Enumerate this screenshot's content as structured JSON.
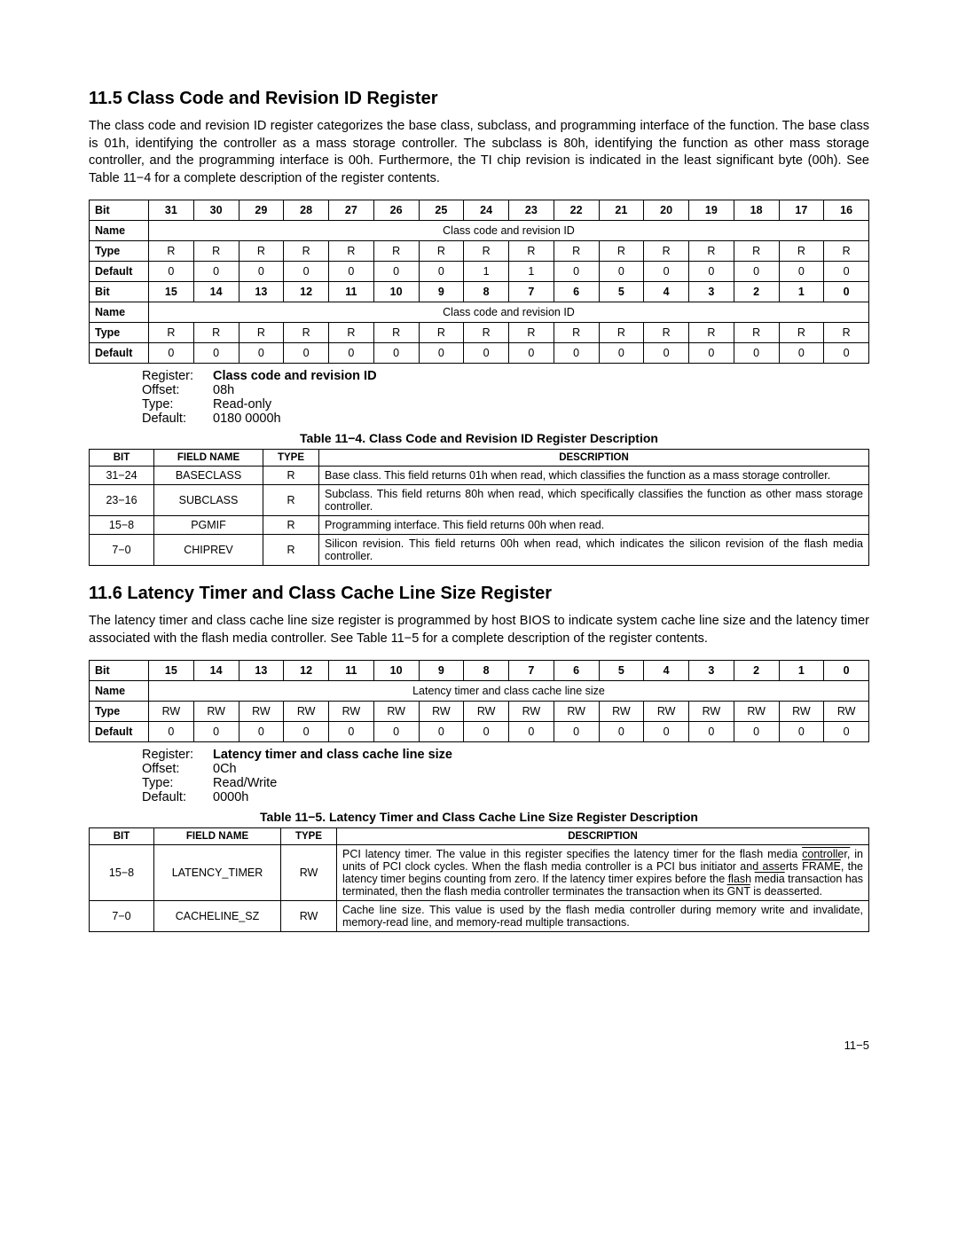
{
  "page_number": "11−5",
  "s1": {
    "heading": "11.5 Class Code and Revision ID Register",
    "para": "The class code and revision ID register categorizes the base class, subclass, and programming interface of the function. The base class is 01h, identifying the controller as a mass storage controller. The subclass is 80h, identifying the function as other mass storage controller, and the programming interface is 00h. Furthermore, the TI chip revision is indicated in the least significant byte (00h). See Table 11−4 for a complete description of the register contents.",
    "bitmap": {
      "row_label_bit": "Bit",
      "row_label_name": "Name",
      "row_label_type": "Type",
      "row_label_default": "Default",
      "name_span": "Class code and revision ID",
      "bits_hi": [
        "31",
        "30",
        "29",
        "28",
        "27",
        "26",
        "25",
        "24",
        "23",
        "22",
        "21",
        "20",
        "19",
        "18",
        "17",
        "16"
      ],
      "type_hi": [
        "R",
        "R",
        "R",
        "R",
        "R",
        "R",
        "R",
        "R",
        "R",
        "R",
        "R",
        "R",
        "R",
        "R",
        "R",
        "R"
      ],
      "def_hi": [
        "0",
        "0",
        "0",
        "0",
        "0",
        "0",
        "0",
        "1",
        "1",
        "0",
        "0",
        "0",
        "0",
        "0",
        "0",
        "0"
      ],
      "bits_lo": [
        "15",
        "14",
        "13",
        "12",
        "11",
        "10",
        "9",
        "8",
        "7",
        "6",
        "5",
        "4",
        "3",
        "2",
        "1",
        "0"
      ],
      "type_lo": [
        "R",
        "R",
        "R",
        "R",
        "R",
        "R",
        "R",
        "R",
        "R",
        "R",
        "R",
        "R",
        "R",
        "R",
        "R",
        "R"
      ],
      "def_lo": [
        "0",
        "0",
        "0",
        "0",
        "0",
        "0",
        "0",
        "0",
        "0",
        "0",
        "0",
        "0",
        "0",
        "0",
        "0",
        "0"
      ]
    },
    "reginfo": {
      "register_k": "Register:",
      "register_v": "Class code and revision ID",
      "offset_k": "Offset:",
      "offset_v": "08h",
      "type_k": "Type:",
      "type_v": "Read-only",
      "default_k": "Default:",
      "default_v": "0180 0000h"
    },
    "caption": "Table 11−4. Class Code and Revision ID Register Description",
    "desc": {
      "h_bit": "BIT",
      "h_field": "FIELD NAME",
      "h_type": "TYPE",
      "h_desc": "DESCRIPTION",
      "rows": [
        {
          "bit": "31−24",
          "field": "BASECLASS",
          "type": "R",
          "desc": "Base class. This field returns 01h when read, which classifies the function as a mass storage controller."
        },
        {
          "bit": "23−16",
          "field": "SUBCLASS",
          "type": "R",
          "desc": "Subclass. This field returns 80h when read, which specifically classifies the function as other mass storage controller."
        },
        {
          "bit": "15−8",
          "field": "PGMIF",
          "type": "R",
          "desc": "Programming interface. This field returns 00h when read."
        },
        {
          "bit": "7−0",
          "field": "CHIPREV",
          "type": "R",
          "desc": "Silicon revision. This field returns 00h when read, which indicates the silicon revision of the flash media controller."
        }
      ]
    }
  },
  "s2": {
    "heading": "11.6 Latency Timer and Class Cache Line Size Register",
    "para": "The latency timer and class cache line size register is programmed by host BIOS to indicate system cache line size and the latency timer associated with the flash media controller. See Table 11−5 for a complete description of the register contents.",
    "bitmap": {
      "row_label_bit": "Bit",
      "row_label_name": "Name",
      "row_label_type": "Type",
      "row_label_default": "Default",
      "name_span": "Latency timer and class cache line size",
      "bits": [
        "15",
        "14",
        "13",
        "12",
        "11",
        "10",
        "9",
        "8",
        "7",
        "6",
        "5",
        "4",
        "3",
        "2",
        "1",
        "0"
      ],
      "type": [
        "RW",
        "RW",
        "RW",
        "RW",
        "RW",
        "RW",
        "RW",
        "RW",
        "RW",
        "RW",
        "RW",
        "RW",
        "RW",
        "RW",
        "RW",
        "RW"
      ],
      "def": [
        "0",
        "0",
        "0",
        "0",
        "0",
        "0",
        "0",
        "0",
        "0",
        "0",
        "0",
        "0",
        "0",
        "0",
        "0",
        "0"
      ]
    },
    "reginfo": {
      "register_k": "Register:",
      "register_v": "Latency timer and class cache line size",
      "offset_k": "Offset:",
      "offset_v": "0Ch",
      "type_k": "Type:",
      "type_v": "Read/Write",
      "default_k": "Default:",
      "default_v": "0000h"
    },
    "caption": "Table 11−5. Latency Timer and Class Cache Line Size Register Description",
    "desc": {
      "h_bit": "BIT",
      "h_field": "FIELD NAME",
      "h_type": "TYPE",
      "h_desc": "DESCRIPTION",
      "rows": [
        {
          "bit": "15−8",
          "field": "LATENCY_TIMER",
          "type": "RW",
          "desc_html": "PCI latency timer. The value in this register specifies the latency timer for the flash media <span class='overline'>controller,</span> in units of PCI clock cycles. When the flash media controller is a PCI bus initiator and asserts <span class='overline'>FRAME</span>, the latency timer begins counting from zero. If the latency timer expires before the flash <span class='overline'>media</span> transaction has terminated, then the flash media controller terminates the transaction when its <span class='overline'>GNT</span> is deasserted."
        },
        {
          "bit": "7−0",
          "field": "CACHELINE_SZ",
          "type": "RW",
          "desc": "Cache line size. This value is used by the flash media controller during memory write and invalidate, memory-read line, and memory-read multiple transactions."
        }
      ]
    }
  }
}
